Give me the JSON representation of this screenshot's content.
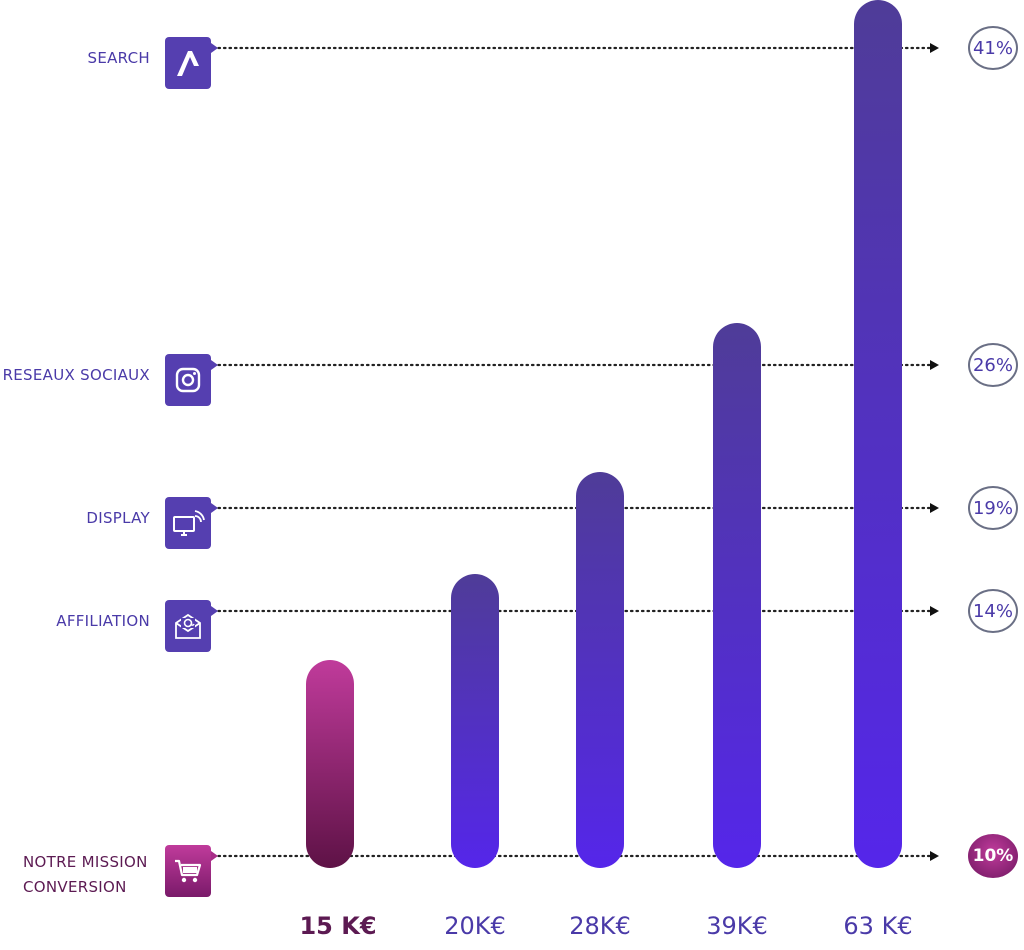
{
  "chart_data": {
    "type": "bar",
    "title": "",
    "categories": [
      "SEARCH",
      "RESEAUX SOCIAUX",
      "DISPLAY",
      "AFFILIATION",
      "NOTRE MISSION CONVERSION"
    ],
    "category_label_lines": [
      [
        "SEARCH"
      ],
      [
        "RESEAUX SOCIAUX"
      ],
      [
        "DISPLAY"
      ],
      [
        "AFFILIATION"
      ],
      [
        "NOTRE MISSION",
        "CONVERSION"
      ]
    ],
    "category_icons": [
      "search-ads-icon",
      "instagram-icon",
      "display-screen-icon",
      "email-at-icon",
      "shopping-cart-icon"
    ],
    "percentages": [
      "41%",
      "26%",
      "19%",
      "14%",
      "10%"
    ],
    "percent_values": [
      41,
      26,
      19,
      14,
      10
    ],
    "bar_labels": [
      "15 K€",
      "20K€",
      "28K€",
      "39K€",
      "63 K€"
    ],
    "bar_values": [
      15,
      20,
      28,
      39,
      63
    ],
    "bar_top_category_index": [
      4,
      3,
      2,
      1,
      0
    ],
    "highlight_index_bar": 0,
    "highlight_index_category": 4,
    "colors": {
      "bar_top": "#4f3c98",
      "bar_bottom": "#5526ea",
      "highlight_top": "#c03b9b",
      "highlight_bottom": "#5e1246",
      "text": "#4a3aa8",
      "highlight_text": "#5c1a52",
      "dots": "#222222"
    }
  }
}
